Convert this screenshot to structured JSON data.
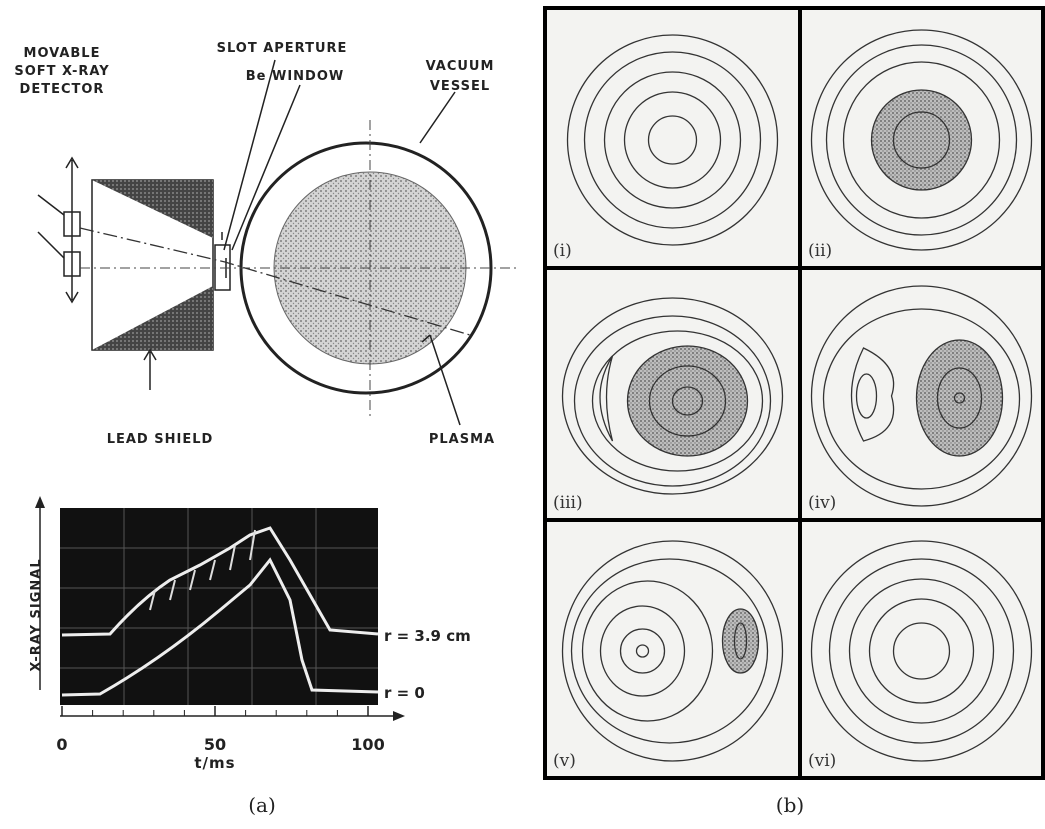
{
  "panel_a": {
    "diagram": {
      "detector": [
        "MOVABLE",
        "SOFT X-RAY",
        "DETECTOR"
      ],
      "slot_aperture": "SLOT APERTURE",
      "be_window": "Be WINDOW",
      "vessel": [
        "VACUUM",
        "VESSEL"
      ],
      "lead_shield": "LEAD SHIELD",
      "plasma": "PLASMA"
    },
    "oscilloscope": {
      "y_label": "X-RAY SIGNAL",
      "x_label": "t/ms",
      "xticks": [
        0,
        50,
        100
      ],
      "traces": [
        "r = 3.9 cm",
        "r = 0"
      ]
    },
    "caption": "(a)"
  },
  "panel_b": {
    "subpanels": [
      "(i)",
      "(ii)",
      "(iii)",
      "(iv)",
      "(v)",
      "(vi)"
    ],
    "caption": "(b)"
  }
}
